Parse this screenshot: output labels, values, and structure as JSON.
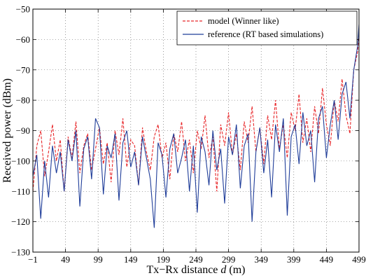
{
  "chart_data": {
    "type": "line",
    "xlabel": {
      "prefix": "Tx−Rx distance ",
      "variable": "d",
      "suffix": " (m)"
    },
    "ylabel": "Received power (dBm)",
    "xlim": [
      -1,
      499
    ],
    "ylim": [
      -130,
      -50
    ],
    "x_ticks": [
      -1,
      49,
      99,
      149,
      199,
      249,
      299,
      349,
      399,
      449,
      499
    ],
    "y_ticks": [
      -130,
      -120,
      -110,
      -100,
      -90,
      -80,
      -70,
      -60,
      -50
    ],
    "x_tick_labels": [
      "−1",
      "49",
      "99",
      "149",
      "199",
      "249",
      "299",
      "349",
      "399",
      "449",
      "499"
    ],
    "y_tick_labels": [
      "−130",
      "−120",
      "−110",
      "−100",
      "−90",
      "−80",
      "−70",
      "−60",
      "−50"
    ],
    "grid": true,
    "grid_style": "dotted",
    "legend_position": "top-right",
    "series": [
      {
        "name": "model (Winner like)",
        "color": "#e8272a",
        "style": "dashed",
        "x": [
          -1,
          5,
          11,
          17,
          23,
          29,
          35,
          41,
          47,
          53,
          59,
          65,
          71,
          77,
          83,
          89,
          95,
          101,
          107,
          113,
          119,
          125,
          131,
          137,
          143,
          149,
          155,
          161,
          167,
          173,
          179,
          185,
          191,
          197,
          203,
          209,
          215,
          221,
          227,
          233,
          239,
          245,
          251,
          257,
          263,
          269,
          275,
          281,
          287,
          293,
          299,
          305,
          311,
          317,
          323,
          329,
          335,
          341,
          347,
          353,
          359,
          365,
          371,
          377,
          383,
          389,
          395,
          401,
          407,
          413,
          419,
          425,
          431,
          437,
          443,
          449,
          455,
          461,
          467,
          473,
          479,
          485,
          491,
          497,
          499
        ],
        "y": [
          -110,
          -95,
          -90,
          -105,
          -97,
          -88,
          -100,
          -93,
          -110,
          -92,
          -99,
          -87,
          -104,
          -95,
          -91,
          -103,
          -96,
          -89,
          -101,
          -94,
          -107,
          -90,
          -98,
          -86,
          -102,
          -93,
          -95,
          -108,
          -89,
          -97,
          -103,
          -92,
          -88,
          -99,
          -94,
          -106,
          -91,
          -97,
          -87,
          -100,
          -93,
          -104,
          -90,
          -96,
          -85,
          -99,
          -92,
          -110,
          -88,
          -95,
          -84,
          -98,
          -91,
          -103,
          -87,
          -94,
          -82,
          -97,
          -89,
          -101,
          -85,
          -93,
          -80,
          -96,
          -88,
          -99,
          -84,
          -90,
          -78,
          -94,
          -86,
          -97,
          -82,
          -91,
          -76,
          -88,
          -95,
          -80,
          -87,
          -73,
          -85,
          -91,
          -70,
          -64,
          -58
        ]
      },
      {
        "name": "reference (RT based simulations)",
        "color": "#1f3d99",
        "style": "solid",
        "x": [
          -1,
          5,
          11,
          17,
          23,
          29,
          35,
          41,
          47,
          53,
          59,
          65,
          71,
          77,
          83,
          89,
          95,
          101,
          107,
          113,
          119,
          125,
          131,
          137,
          143,
          149,
          155,
          161,
          167,
          173,
          179,
          185,
          191,
          197,
          203,
          209,
          215,
          221,
          227,
          233,
          239,
          245,
          251,
          257,
          263,
          269,
          275,
          281,
          287,
          293,
          299,
          305,
          311,
          317,
          323,
          329,
          335,
          341,
          347,
          353,
          359,
          365,
          371,
          377,
          383,
          389,
          395,
          401,
          407,
          413,
          419,
          425,
          431,
          437,
          443,
          449,
          455,
          461,
          467,
          473,
          479,
          485,
          491,
          497,
          499
        ],
        "y": [
          -105,
          -98,
          -119,
          -100,
          -112,
          -95,
          -104,
          -97,
          -110,
          -93,
          -100,
          -90,
          -115,
          -96,
          -92,
          -106,
          -86,
          -89,
          -111,
          -95,
          -99,
          -91,
          -113,
          -94,
          -90,
          -102,
          -97,
          -108,
          -92,
          -99,
          -106,
          -122,
          -94,
          -98,
          -112,
          -96,
          -91,
          -104,
          -99,
          -93,
          -110,
          -95,
          -117,
          -92,
          -97,
          -108,
          -90,
          -103,
          -96,
          -114,
          -92,
          -98,
          -88,
          -109,
          -95,
          -91,
          -120,
          -97,
          -89,
          -104,
          -93,
          -112,
          -88,
          -97,
          -86,
          -118,
          -92,
          -88,
          -101,
          -84,
          -95,
          -90,
          -107,
          -86,
          -82,
          -99,
          -88,
          -80,
          -93,
          -78,
          -74,
          -86,
          -70,
          -62,
          -55
        ]
      }
    ]
  }
}
